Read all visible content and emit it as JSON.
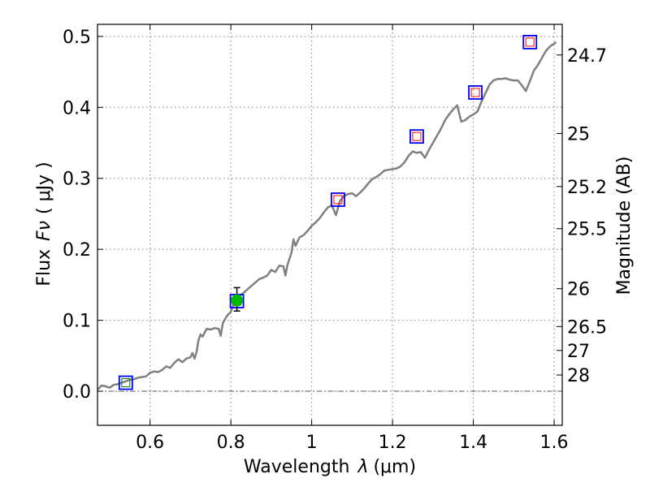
{
  "chart_data": {
    "type": "line",
    "xlabel_prefix": "Wavelength",
    "xlabel_symbol": "λ",
    "xlabel_unit": "(μm)",
    "ylabel_prefix": "Flux",
    "ylabel_symbol": "Fν",
    "ylabel_unit": "( μJy )",
    "y2label": "Magnitude (AB)",
    "xlim": [
      0.47,
      1.62
    ],
    "ylim": [
      -0.048,
      0.517
    ],
    "x_ticks": [
      {
        "value": 0.6,
        "label": "0.6"
      },
      {
        "value": 0.8,
        "label": "0.8"
      },
      {
        "value": 1.0,
        "label": "1"
      },
      {
        "value": 1.2,
        "label": "1.2"
      },
      {
        "value": 1.4,
        "label": "1.4"
      },
      {
        "value": 1.6,
        "label": "1.6"
      }
    ],
    "y_ticks": [
      {
        "value": 0.0,
        "label": "0.0"
      },
      {
        "value": 0.1,
        "label": "0.1"
      },
      {
        "value": 0.2,
        "label": "0.2"
      },
      {
        "value": 0.3,
        "label": "0.3"
      },
      {
        "value": 0.4,
        "label": "0.4"
      },
      {
        "value": 0.5,
        "label": "0.5"
      }
    ],
    "y2_ticks": [
      {
        "flux": 0.4738,
        "label": "24.7"
      },
      {
        "flux": 0.3632,
        "label": "25"
      },
      {
        "flux": 0.2885,
        "label": "25.2"
      },
      {
        "flux": 0.2291,
        "label": "25.5"
      },
      {
        "flux": 0.1445,
        "label": "26"
      },
      {
        "flux": 0.0912,
        "label": "26.5"
      },
      {
        "flux": 0.0575,
        "label": "27"
      },
      {
        "flux": 0.0229,
        "label": "28"
      }
    ],
    "grid": true,
    "series": [
      {
        "name": "model_spectrum",
        "color": "#808080",
        "points": [
          [
            0.47,
            0.002
          ],
          [
            0.48,
            0.008
          ],
          [
            0.49,
            0.007
          ],
          [
            0.5,
            0.005
          ],
          [
            0.51,
            0.009
          ],
          [
            0.52,
            0.01
          ],
          [
            0.53,
            0.012
          ],
          [
            0.54,
            0.014
          ],
          [
            0.55,
            0.016
          ],
          [
            0.56,
            0.017
          ],
          [
            0.57,
            0.019
          ],
          [
            0.58,
            0.02
          ],
          [
            0.59,
            0.021
          ],
          [
            0.6,
            0.026
          ],
          [
            0.61,
            0.028
          ],
          [
            0.62,
            0.027
          ],
          [
            0.63,
            0.03
          ],
          [
            0.64,
            0.035
          ],
          [
            0.65,
            0.033
          ],
          [
            0.66,
            0.04
          ],
          [
            0.67,
            0.045
          ],
          [
            0.68,
            0.041
          ],
          [
            0.69,
            0.046
          ],
          [
            0.7,
            0.048
          ],
          [
            0.705,
            0.054
          ],
          [
            0.71,
            0.046
          ],
          [
            0.715,
            0.055
          ],
          [
            0.72,
            0.072
          ],
          [
            0.725,
            0.08
          ],
          [
            0.73,
            0.077
          ],
          [
            0.74,
            0.088
          ],
          [
            0.75,
            0.087
          ],
          [
            0.76,
            0.089
          ],
          [
            0.77,
            0.088
          ],
          [
            0.775,
            0.078
          ],
          [
            0.78,
            0.096
          ],
          [
            0.79,
            0.106
          ],
          [
            0.8,
            0.112
          ],
          [
            0.81,
            0.128
          ],
          [
            0.82,
            0.134
          ],
          [
            0.83,
            0.138
          ],
          [
            0.84,
            0.143
          ],
          [
            0.85,
            0.148
          ],
          [
            0.86,
            0.153
          ],
          [
            0.87,
            0.158
          ],
          [
            0.88,
            0.16
          ],
          [
            0.89,
            0.163
          ],
          [
            0.9,
            0.171
          ],
          [
            0.91,
            0.168
          ],
          [
            0.92,
            0.177
          ],
          [
            0.93,
            0.176
          ],
          [
            0.935,
            0.163
          ],
          [
            0.94,
            0.178
          ],
          [
            0.95,
            0.195
          ],
          [
            0.955,
            0.214
          ],
          [
            0.96,
            0.205
          ],
          [
            0.97,
            0.217
          ],
          [
            0.98,
            0.22
          ],
          [
            0.99,
            0.226
          ],
          [
            1.0,
            0.233
          ],
          [
            1.01,
            0.238
          ],
          [
            1.02,
            0.244
          ],
          [
            1.03,
            0.252
          ],
          [
            1.04,
            0.259
          ],
          [
            1.05,
            0.262
          ],
          [
            1.06,
            0.248
          ],
          [
            1.07,
            0.268
          ],
          [
            1.08,
            0.275
          ],
          [
            1.09,
            0.278
          ],
          [
            1.1,
            0.279
          ],
          [
            1.11,
            0.275
          ],
          [
            1.12,
            0.28
          ],
          [
            1.13,
            0.286
          ],
          [
            1.14,
            0.293
          ],
          [
            1.15,
            0.299
          ],
          [
            1.16,
            0.302
          ],
          [
            1.17,
            0.306
          ],
          [
            1.18,
            0.311
          ],
          [
            1.19,
            0.312
          ],
          [
            1.2,
            0.313
          ],
          [
            1.21,
            0.314
          ],
          [
            1.22,
            0.317
          ],
          [
            1.23,
            0.323
          ],
          [
            1.24,
            0.332
          ],
          [
            1.25,
            0.338
          ],
          [
            1.26,
            0.336
          ],
          [
            1.27,
            0.337
          ],
          [
            1.28,
            0.329
          ],
          [
            1.29,
            0.34
          ],
          [
            1.3,
            0.35
          ],
          [
            1.31,
            0.36
          ],
          [
            1.32,
            0.37
          ],
          [
            1.33,
            0.382
          ],
          [
            1.34,
            0.39
          ],
          [
            1.35,
            0.397
          ],
          [
            1.36,
            0.403
          ],
          [
            1.37,
            0.38
          ],
          [
            1.38,
            0.382
          ],
          [
            1.39,
            0.387
          ],
          [
            1.4,
            0.39
          ],
          [
            1.41,
            0.394
          ],
          [
            1.42,
            0.408
          ],
          [
            1.43,
            0.42
          ],
          [
            1.44,
            0.432
          ],
          [
            1.45,
            0.438
          ],
          [
            1.46,
            0.44
          ],
          [
            1.47,
            0.44
          ],
          [
            1.48,
            0.441
          ],
          [
            1.49,
            0.439
          ],
          [
            1.5,
            0.438
          ],
          [
            1.51,
            0.438
          ],
          [
            1.52,
            0.431
          ],
          [
            1.53,
            0.423
          ],
          [
            1.54,
            0.437
          ],
          [
            1.55,
            0.452
          ],
          [
            1.56,
            0.46
          ],
          [
            1.57,
            0.47
          ],
          [
            1.58,
            0.48
          ],
          [
            1.59,
            0.486
          ],
          [
            1.6,
            0.49
          ],
          [
            1.605,
            0.492
          ]
        ]
      }
    ],
    "photometry": [
      {
        "x": 0.54,
        "y": 0.012,
        "outer_color": "#0000ff",
        "inner_color": "#008000"
      },
      {
        "x": 0.815,
        "y": 0.127,
        "outer_color": "#0000ff",
        "inner_color": "#ff0000"
      },
      {
        "x": 1.065,
        "y": 0.27,
        "outer_color": "#0000ff",
        "inner_color": "#ff0000"
      },
      {
        "x": 1.26,
        "y": 0.359,
        "outer_color": "#0000ff",
        "inner_color": "#ff0000"
      },
      {
        "x": 1.405,
        "y": 0.421,
        "outer_color": "#0000ff",
        "inner_color": "#ff0000"
      },
      {
        "x": 1.54,
        "y": 0.492,
        "outer_color": "#0000ff",
        "inner_color": "#ff0000"
      }
    ],
    "measurement": {
      "x": 0.815,
      "y": 0.128,
      "yerr_low": 0.113,
      "yerr_high": 0.146,
      "color": "#00bb00",
      "errorbar_color": "#000000"
    },
    "zero_line": {
      "y": 0.0,
      "color": "#555555"
    }
  }
}
